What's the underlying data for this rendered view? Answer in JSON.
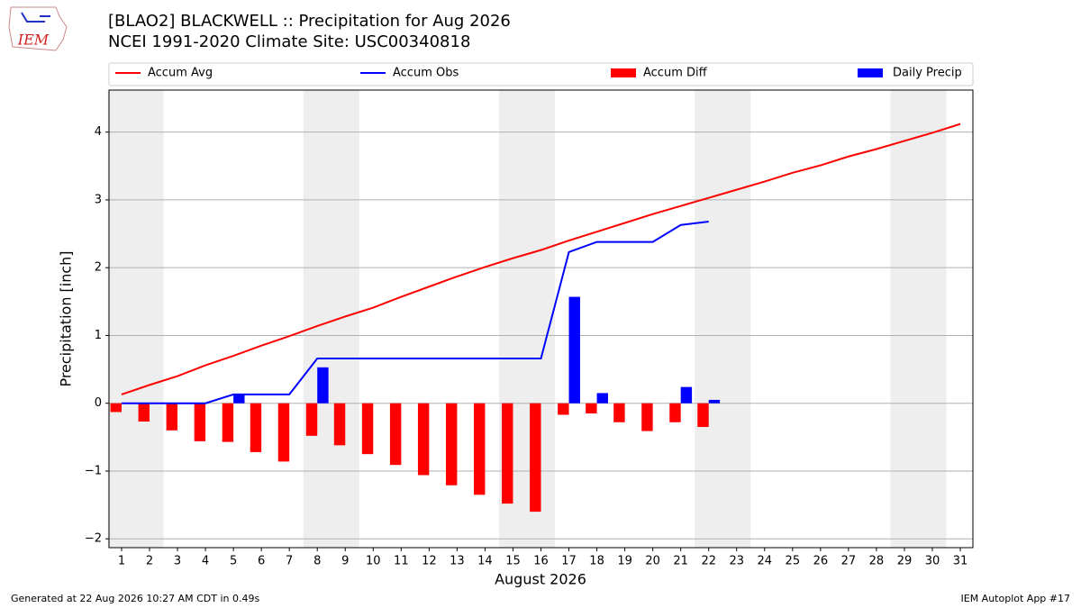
{
  "chart_data": {
    "type": "bar",
    "title": "[BLAO2] BLACKWELL :: Precipitation for Aug 2026",
    "subtitle": "NCEI 1991-2020 Climate Site: USC00340818",
    "logo_text": "IEM",
    "x_label": "August 2026",
    "y_label": "Precipitation [inch]",
    "footer_left": "Generated at 22 Aug 2026 10:27 AM CDT in 0.49s",
    "footer_right": "IEM Autoplot App #17",
    "x": [
      1,
      2,
      3,
      4,
      5,
      6,
      7,
      8,
      9,
      10,
      11,
      12,
      13,
      14,
      15,
      16,
      17,
      18,
      19,
      20,
      21,
      22,
      23,
      24,
      25,
      26,
      27,
      28,
      29,
      30,
      31
    ],
    "xlim": [
      0.55,
      31.45
    ],
    "xticks": [
      1,
      2,
      3,
      4,
      5,
      6,
      7,
      8,
      9,
      10,
      11,
      12,
      13,
      14,
      15,
      16,
      17,
      18,
      19,
      20,
      21,
      22,
      23,
      24,
      25,
      26,
      27,
      28,
      29,
      30,
      31
    ],
    "ylim": [
      -2.13,
      4.62
    ],
    "yticks": [
      {
        "value": -2,
        "label": "−2"
      },
      {
        "value": -1,
        "label": "−1"
      },
      0,
      1,
      2,
      3,
      4
    ],
    "grid": true,
    "shaded_days": [
      [
        1,
        2
      ],
      [
        8,
        9
      ],
      [
        15,
        16
      ],
      [
        22,
        23
      ],
      [
        29,
        30
      ]
    ],
    "shade_color": "#eeeeee",
    "series": [
      {
        "name": "Accum Avg",
        "kind": "line",
        "color": "#ff0000",
        "values": [
          0.13,
          0.27,
          0.4,
          0.56,
          0.7,
          0.85,
          0.99,
          1.14,
          1.28,
          1.41,
          1.57,
          1.72,
          1.87,
          2.01,
          2.14,
          2.26,
          2.4,
          2.53,
          2.66,
          2.79,
          2.91,
          3.03,
          3.15,
          3.27,
          3.4,
          3.51,
          3.64,
          3.75,
          3.87,
          3.99,
          4.12
        ]
      },
      {
        "name": "Accum Obs",
        "kind": "line",
        "color": "#0000ff",
        "values": [
          0,
          0,
          0,
          0,
          0.13,
          0.13,
          0.13,
          0.66,
          0.66,
          0.66,
          0.66,
          0.66,
          0.66,
          0.66,
          0.66,
          0.66,
          2.23,
          2.38,
          2.38,
          2.38,
          2.63,
          2.68,
          null,
          null,
          null,
          null,
          null,
          null,
          null,
          null,
          null
        ]
      },
      {
        "name": "Accum Diff",
        "kind": "bar",
        "offset": -0.2,
        "color": "#ff0000",
        "values": [
          -0.13,
          -0.27,
          -0.4,
          -0.56,
          -0.57,
          -0.72,
          -0.86,
          -0.48,
          -0.62,
          -0.75,
          -0.91,
          -1.06,
          -1.21,
          -1.35,
          -1.48,
          -1.6,
          -0.17,
          -0.15,
          -0.28,
          -0.41,
          -0.28,
          -0.35,
          null,
          null,
          null,
          null,
          null,
          null,
          null,
          null,
          null
        ]
      },
      {
        "name": "Daily Precip",
        "kind": "bar",
        "offset": 0.2,
        "color": "#0000ff",
        "values": [
          0,
          0,
          0,
          0,
          0.13,
          0,
          0,
          0.53,
          0,
          0,
          0,
          0,
          0,
          0,
          0,
          0,
          1.57,
          0.15,
          0,
          0,
          0.24,
          0.05,
          null,
          null,
          null,
          null,
          null,
          null,
          null,
          null,
          null
        ]
      }
    ]
  }
}
